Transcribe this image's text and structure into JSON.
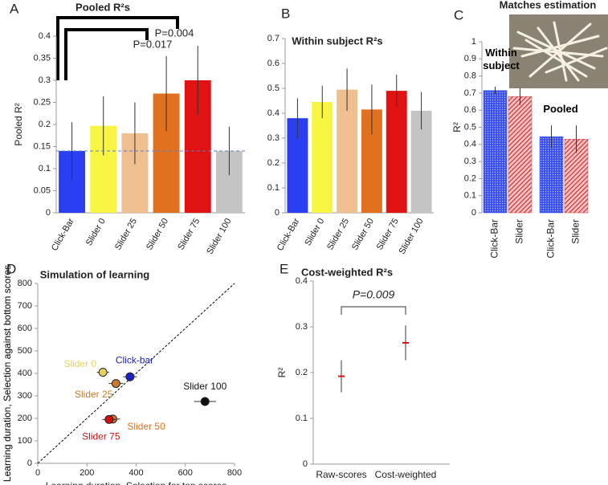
{
  "chart_data": [
    {
      "panel": "A",
      "type": "bar",
      "title": "Pooled R²s",
      "ylabel": "Pooled R²",
      "categories": [
        "Click-Bar",
        "Slider 0",
        "Slider 25",
        "Slider 50",
        "Slider 75",
        "Slider 100"
      ],
      "values": [
        0.14,
        0.197,
        0.18,
        0.27,
        0.3,
        0.14
      ],
      "errors": [
        0.065,
        0.067,
        0.07,
        0.085,
        0.078,
        0.055
      ],
      "colors": [
        "#2b3ff2",
        "#f7f442",
        "#efbf8f",
        "#e2711f",
        "#e01212",
        "#c4c4c4"
      ],
      "ylim": [
        0,
        0.4
      ],
      "yticks": [
        0,
        0.05,
        0.1,
        0.15,
        0.2,
        0.25,
        0.3,
        0.35,
        0.4
      ],
      "reference_line": 0.14,
      "annotations": [
        "P=0.017",
        "P=0.004"
      ]
    },
    {
      "panel": "B",
      "type": "bar",
      "title": "Within subject R²s",
      "categories": [
        "Click-Bar",
        "Slider 0",
        "Slider 25",
        "Slider 50",
        "Slider 75",
        "Slider 100"
      ],
      "values": [
        0.38,
        0.445,
        0.495,
        0.415,
        0.49,
        0.41
      ],
      "errors": [
        0.08,
        0.065,
        0.085,
        0.1,
        0.065,
        0.075
      ],
      "colors": [
        "#2b3ff2",
        "#f7f442",
        "#efbf8f",
        "#e2711f",
        "#e01212",
        "#c4c4c4"
      ],
      "ylim": [
        0,
        0.7
      ],
      "yticks": [
        0,
        0.1,
        0.2,
        0.3,
        0.4,
        0.5,
        0.6,
        0.7
      ]
    },
    {
      "panel": "C",
      "type": "grouped_bar",
      "title": "Matches estimation",
      "ylabel": "R²",
      "categories": [
        "Click-Bar",
        "Slider"
      ],
      "groups": [
        "Within subject",
        "Pooled"
      ],
      "values": [
        [
          0.715,
          0.68
        ],
        [
          0.445,
          0.43
        ]
      ],
      "errors": [
        [
          0.022,
          0.05
        ],
        [
          0.065,
          0.08
        ]
      ],
      "colors": [
        "#3a4ff0",
        "#d03434"
      ],
      "ylim": [
        0,
        1
      ],
      "yticks": [
        0,
        0.1,
        0.2,
        0.3,
        0.4,
        0.5,
        0.6,
        0.7,
        0.8,
        0.9,
        1
      ]
    },
    {
      "panel": "D",
      "type": "scatter",
      "title": "Simulation of learning",
      "xlabel": "Learning duration, Selection for top scores",
      "ylabel": "Learning duration, Selection against bottom scores",
      "points": [
        {
          "name": "Slider 0",
          "color": "#e8d060",
          "x": 265,
          "y": 405,
          "xerr": 25,
          "yerr": 20
        },
        {
          "name": "Click-bar",
          "color": "#1a22c8",
          "x": 375,
          "y": 385,
          "xerr": 28,
          "yerr": 20
        },
        {
          "name": "Slider 25",
          "color": "#c97a30",
          "x": 318,
          "y": 355,
          "xerr": 30,
          "yerr": 18
        },
        {
          "name": "Slider 100",
          "color": "#111111",
          "x": 680,
          "y": 275,
          "xerr": 45,
          "yerr": 20
        },
        {
          "name": "Slider 50",
          "color": "#e2711f",
          "x": 305,
          "y": 197,
          "xerr": 30,
          "yerr": 15
        },
        {
          "name": "Slider 75",
          "color": "#d01010",
          "x": 290,
          "y": 195,
          "xerr": 28,
          "yerr": 15
        }
      ],
      "xlim": [
        0,
        800
      ],
      "ylim": [
        0,
        800
      ],
      "xticks": [
        0,
        200,
        400,
        600,
        800
      ],
      "yticks": [
        0,
        100,
        200,
        300,
        400,
        500,
        600,
        700,
        800
      ]
    },
    {
      "panel": "E",
      "type": "errorbar",
      "title": "Cost-weighted R²s",
      "ylabel": "R²",
      "categories": [
        "Raw-scores",
        "Cost-weighted"
      ],
      "values": [
        0.192,
        0.265
      ],
      "errors": [
        0.035,
        0.038
      ],
      "color": "#e01010",
      "ylim": [
        0,
        0.4
      ],
      "yticks": [
        0,
        0.1,
        0.2,
        0.3,
        0.4
      ],
      "annotation": "P=0.009"
    }
  ]
}
